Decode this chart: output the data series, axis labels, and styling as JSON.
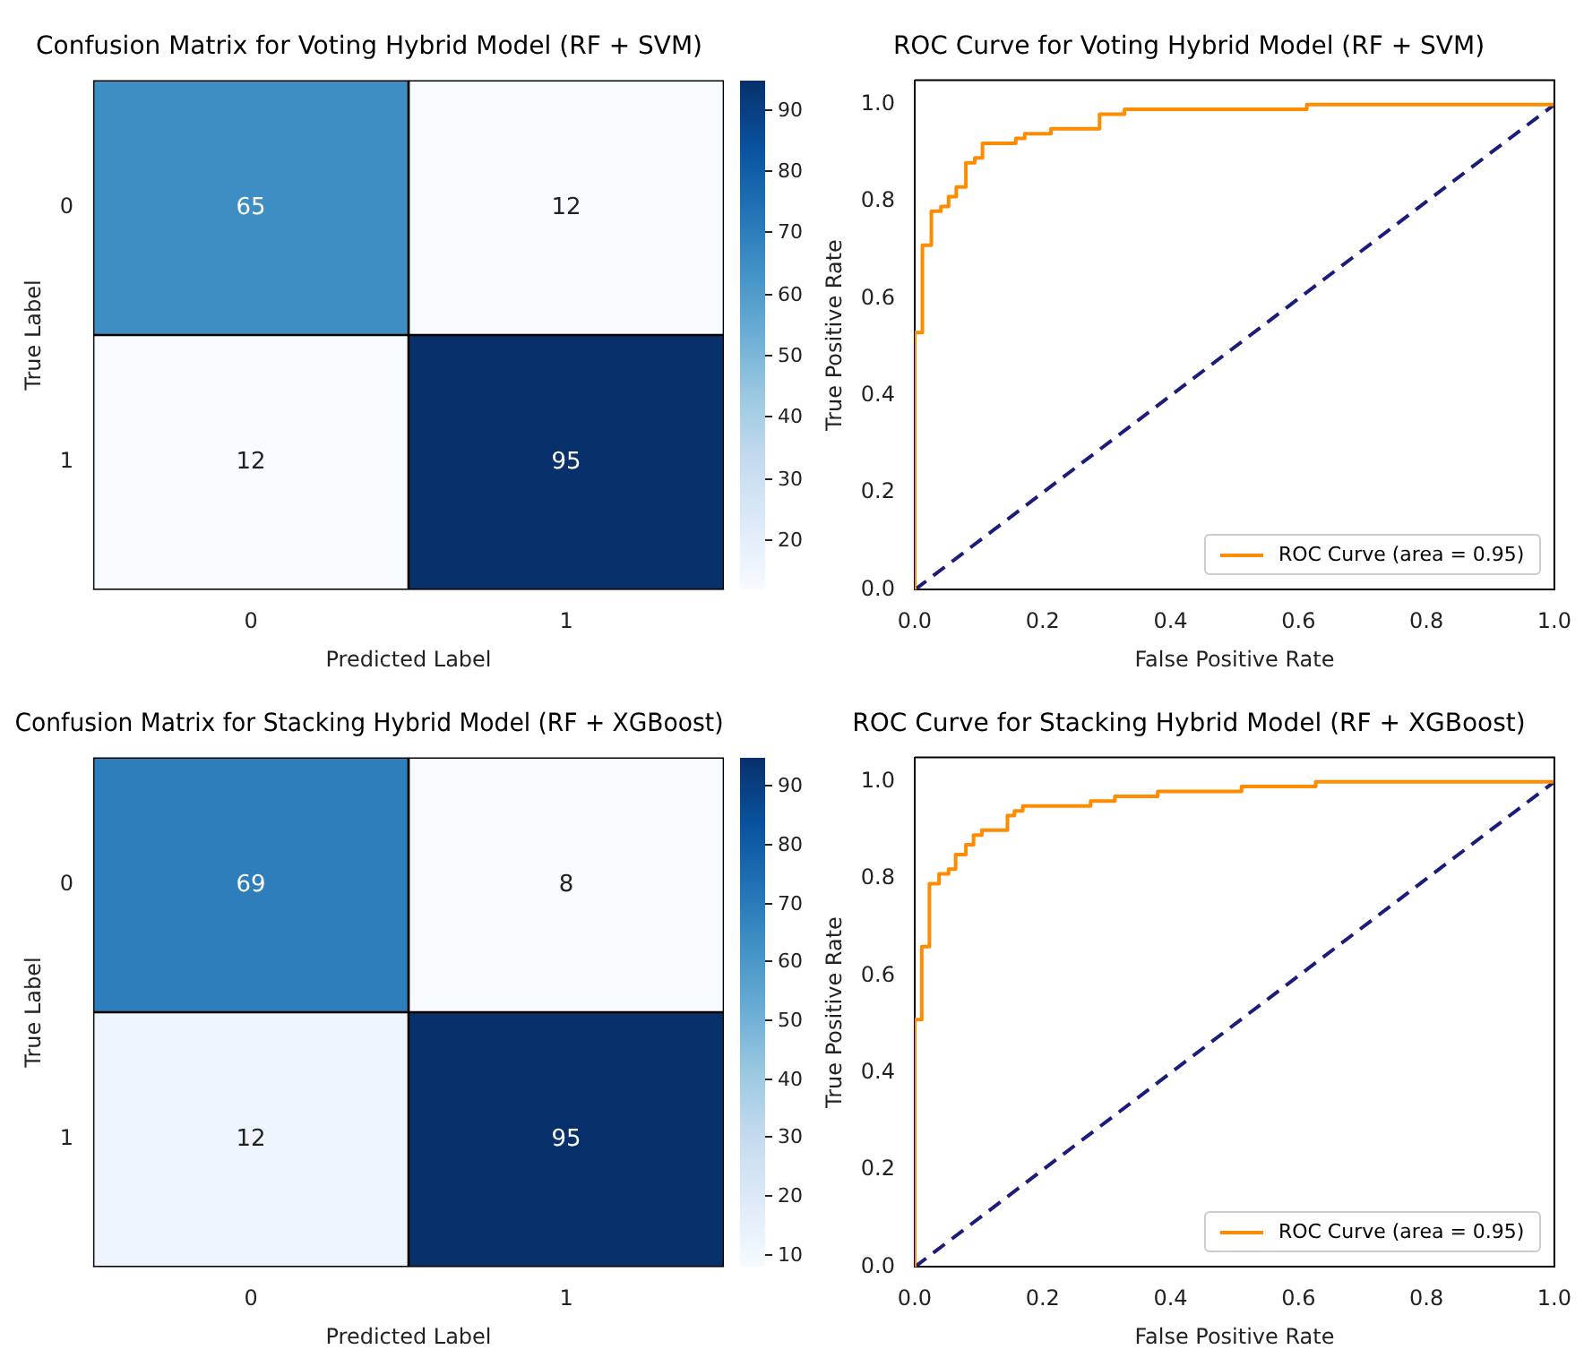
{
  "chart_data": [
    {
      "type": "heatmap",
      "title": "Confusion Matrix for Voting Hybrid Model (RF + SVM)",
      "xlabel": "Predicted Label",
      "ylabel": "True Label",
      "categories": [
        "0",
        "1"
      ],
      "y_categories": [
        "0",
        "1"
      ],
      "cells": [
        [
          65,
          12
        ],
        [
          12,
          95
        ]
      ],
      "data_labels": true,
      "clim": [
        12,
        95
      ],
      "cticks": [
        20,
        30,
        40,
        50,
        60,
        70,
        80,
        90
      ]
    },
    {
      "type": "line",
      "title": "ROC Curve for Voting Hybrid Model (RF + SVM)",
      "xlabel": "False Positive Rate",
      "ylabel": "True Positive Rate",
      "series": [
        {
          "type": "step",
          "name": "ROC Curve (area = 0.95)",
          "color": "#ff8c00",
          "x": [
            0,
            0,
            0.012,
            0.026,
            0.041,
            0.053,
            0.065,
            0.08,
            0.094,
            0.106,
            0.158,
            0.172,
            0.2,
            0.213,
            0.289,
            0.328,
            0.613,
            0.797,
            1
          ],
          "values": [
            0,
            0.52,
            0.53,
            0.71,
            0.78,
            0.79,
            0.81,
            0.83,
            0.88,
            0.89,
            0.92,
            0.93,
            0.94,
            0.94,
            0.95,
            0.98,
            0.99,
            1,
            1
          ]
        },
        {
          "type": "line",
          "color": "#1c1c7a",
          "line_style": "dashed",
          "x": [
            0,
            1
          ],
          "values": [
            0,
            1
          ]
        }
      ],
      "xlim": [
        0,
        1
      ],
      "ylim": [
        0,
        1.05
      ],
      "xticks": [
        {
          "value": 0,
          "label": "0.0"
        },
        {
          "value": 0.2,
          "label": "0.2"
        },
        {
          "value": 0.4,
          "label": "0.4"
        },
        {
          "value": 0.6,
          "label": "0.6"
        },
        {
          "value": 0.8,
          "label": "0.8"
        },
        {
          "value": 1,
          "label": "1.0"
        }
      ],
      "yticks": [
        {
          "value": 0,
          "label": "0.0"
        },
        {
          "value": 0.2,
          "label": "0.2"
        },
        {
          "value": 0.4,
          "label": "0.4"
        },
        {
          "value": 0.6,
          "label": "0.6"
        },
        {
          "value": 0.8,
          "label": "0.8"
        },
        {
          "value": 1,
          "label": "1.0"
        }
      ],
      "legend": "bottom right",
      "marker": "none"
    },
    {
      "type": "heatmap",
      "title": "Confusion Matrix for Stacking Hybrid Model (RF + XGBoost)",
      "xlabel": "Predicted Label",
      "ylabel": "True Label",
      "categories": [
        "0",
        "1"
      ],
      "y_categories": [
        "0",
        "1"
      ],
      "cells": [
        [
          69,
          8
        ],
        [
          12,
          95
        ]
      ],
      "data_labels": true,
      "clim": [
        8,
        95
      ],
      "cticks": [
        10,
        20,
        30,
        40,
        50,
        60,
        70,
        80,
        90
      ]
    },
    {
      "type": "line",
      "title": "ROC Curve for Stacking Hybrid Model (RF + XGBoost)",
      "xlabel": "False Positive Rate",
      "ylabel": "True Positive Rate",
      "series": [
        {
          "type": "step",
          "name": "ROC Curve (area = 0.95)",
          "color": "#ff8c00",
          "x": [
            0,
            0,
            0.011,
            0.023,
            0.038,
            0.053,
            0.064,
            0.08,
            0.092,
            0.105,
            0.145,
            0.156,
            0.169,
            0.275,
            0.313,
            0.38,
            0.511,
            0.627,
            0.8,
            1
          ],
          "values": [
            0,
            0.4,
            0.51,
            0.66,
            0.79,
            0.81,
            0.82,
            0.85,
            0.87,
            0.89,
            0.9,
            0.93,
            0.94,
            0.95,
            0.96,
            0.97,
            0.98,
            0.99,
            1,
            1
          ]
        },
        {
          "type": "line",
          "color": "#1c1c7a",
          "line_style": "dashed",
          "x": [
            0,
            1
          ],
          "values": [
            0,
            1
          ]
        }
      ],
      "xlim": [
        0,
        1
      ],
      "ylim": [
        0,
        1.05
      ],
      "xticks": [
        {
          "value": 0,
          "label": "0.0"
        },
        {
          "value": 0.2,
          "label": "0.2"
        },
        {
          "value": 0.4,
          "label": "0.4"
        },
        {
          "value": 0.6,
          "label": "0.6"
        },
        {
          "value": 0.8,
          "label": "0.8"
        },
        {
          "value": 1,
          "label": "1.0"
        }
      ],
      "yticks": [
        {
          "value": 0,
          "label": "0.0"
        },
        {
          "value": 0.2,
          "label": "0.2"
        },
        {
          "value": 0.4,
          "label": "0.4"
        },
        {
          "value": 0.6,
          "label": "0.6"
        },
        {
          "value": 0.8,
          "label": "0.8"
        },
        {
          "value": 1,
          "label": "1.0"
        }
      ],
      "legend": "bottom right",
      "marker": "none"
    }
  ]
}
